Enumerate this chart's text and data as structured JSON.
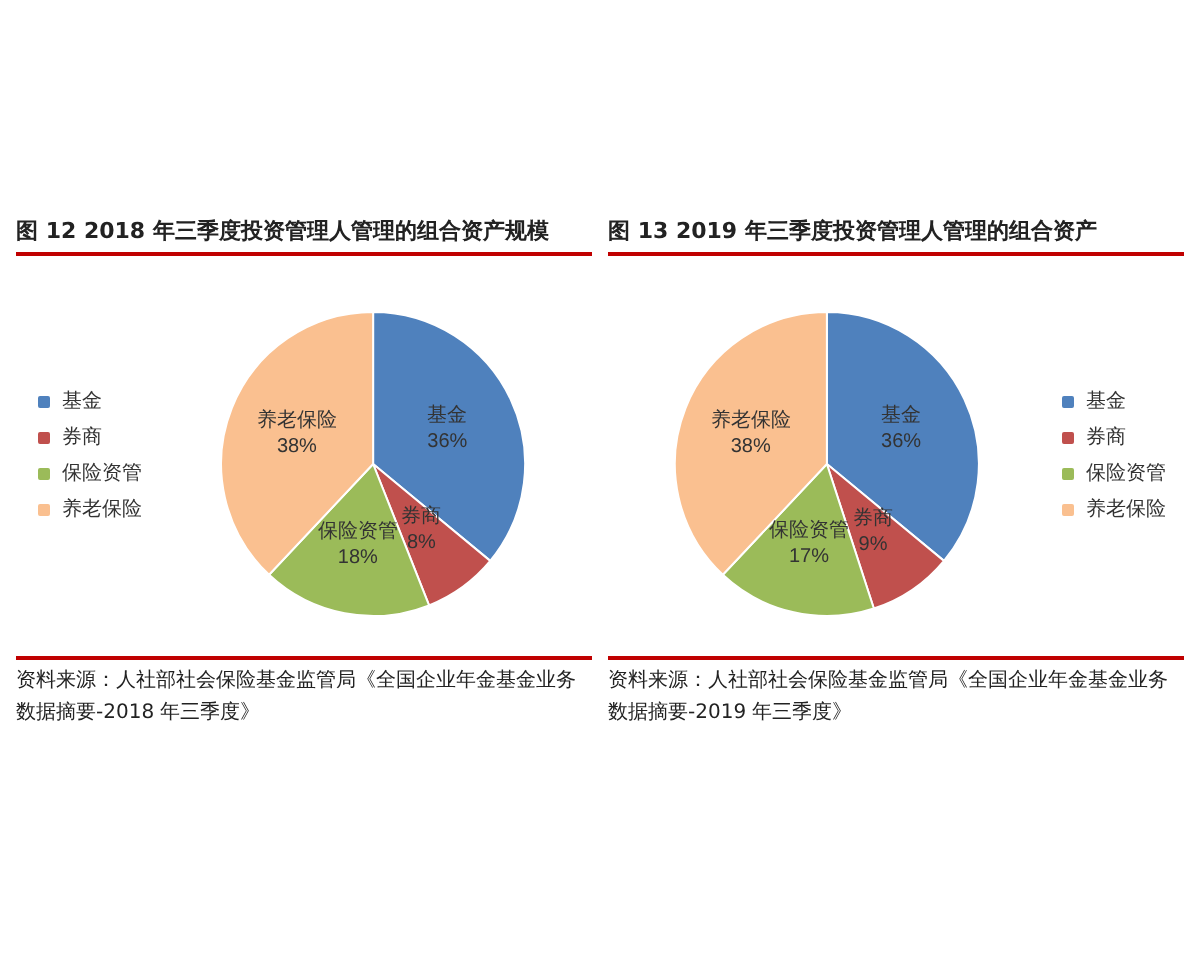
{
  "chart_data": [
    {
      "type": "pie",
      "title": "图 12   2018 年三季度投资管理人管理的组合资产规模",
      "categories": [
        "基金",
        "券商",
        "保险资管",
        "养老保险"
      ],
      "values": [
        36,
        8,
        18,
        38
      ],
      "value_labels": [
        "36%",
        "8%",
        "18%",
        "38%"
      ],
      "colors": [
        "#4f81bd",
        "#c0504d",
        "#9bbb59",
        "#fac090"
      ],
      "legend": "left",
      "annotations": [
        "资料来源：人社部社会保险基金监管局《全国企业年金基金业务数据摘要-2018 年三季度》"
      ]
    },
    {
      "type": "pie",
      "title": "图 13   2019 年三季度投资管理人管理的组合资产",
      "categories": [
        "基金",
        "券商",
        "保险资管",
        "养老保险"
      ],
      "values": [
        36,
        9,
        17,
        38
      ],
      "value_labels": [
        "36%",
        "9%",
        "17%",
        "38%"
      ],
      "colors": [
        "#4f81bd",
        "#c0504d",
        "#9bbb59",
        "#fac090"
      ],
      "legend": "right",
      "annotations": [
        "资料来源：人社部社会保险基金监管局《全国企业年金基金业务数据摘要-2019 年三季度》"
      ]
    }
  ]
}
